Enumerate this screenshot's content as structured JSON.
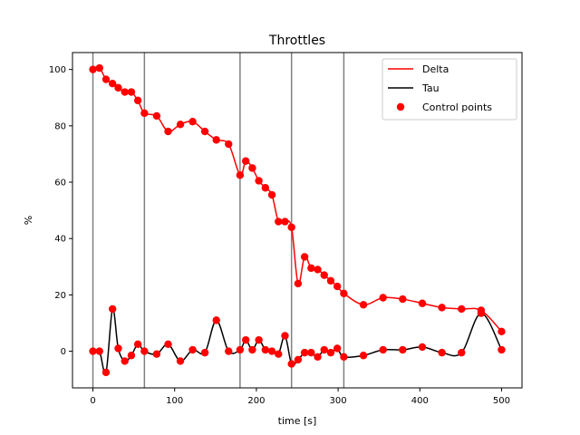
{
  "chart_data": {
    "type": "line",
    "title": "Throttles",
    "xlabel": "time [s]",
    "ylabel": "%",
    "xlim": [
      -25,
      525
    ],
    "ylim": [
      -13,
      106
    ],
    "xticks": [
      0,
      100,
      200,
      300,
      400,
      500
    ],
    "yticks": [
      0,
      20,
      40,
      60,
      80,
      100
    ],
    "grid": false,
    "legend_position": "top-right",
    "vertical_lines": [
      0,
      63,
      180,
      243,
      307
    ],
    "vertical_line_color": "#808080",
    "series": [
      {
        "name": "Delta",
        "color": "#ff0000",
        "x": [
          0,
          8,
          16,
          24,
          31,
          39,
          47,
          55,
          63,
          78,
          92,
          107,
          122,
          137,
          151,
          166,
          180,
          187,
          195,
          203,
          211,
          219,
          227,
          235,
          243,
          251,
          259,
          267,
          275,
          283,
          291,
          299,
          307,
          331,
          355,
          379,
          403,
          427,
          451,
          475,
          500
        ],
        "y": [
          100,
          100.5,
          96.5,
          95,
          93.5,
          92,
          92,
          89,
          84.5,
          83.5,
          78,
          80.5,
          81.5,
          78,
          75,
          73.5,
          62.5,
          67.5,
          65,
          60.5,
          58,
          55.5,
          46,
          46,
          44,
          24,
          33.5,
          29.5,
          29,
          27,
          25,
          23,
          20.5,
          16.5,
          19,
          18.5,
          17,
          15.5,
          15,
          14.5,
          7
        ]
      },
      {
        "name": "Tau",
        "color": "#000000",
        "x": [
          0,
          8,
          16,
          24,
          31,
          39,
          47,
          55,
          63,
          78,
          92,
          107,
          122,
          137,
          151,
          166,
          180,
          187,
          195,
          203,
          211,
          219,
          227,
          235,
          243,
          251,
          259,
          267,
          275,
          283,
          291,
          299,
          307,
          331,
          355,
          379,
          403,
          427,
          451,
          475,
          500
        ],
        "y": [
          0,
          0,
          -7.5,
          15,
          1,
          -3.5,
          -1.5,
          2.5,
          0,
          -1,
          2.5,
          -3.5,
          0.5,
          -0.5,
          11,
          0,
          0.5,
          4,
          0.5,
          4,
          0.5,
          0,
          -1,
          5.5,
          -4.5,
          -3,
          -0.5,
          -0.5,
          -2,
          0.5,
          -0.5,
          1,
          -2,
          -1.5,
          0.5,
          0.5,
          1.5,
          -0.5,
          -0.5,
          13.5,
          0.5
        ]
      },
      {
        "name": "Control points",
        "color": "#ff0000",
        "marker": "circle"
      }
    ]
  }
}
